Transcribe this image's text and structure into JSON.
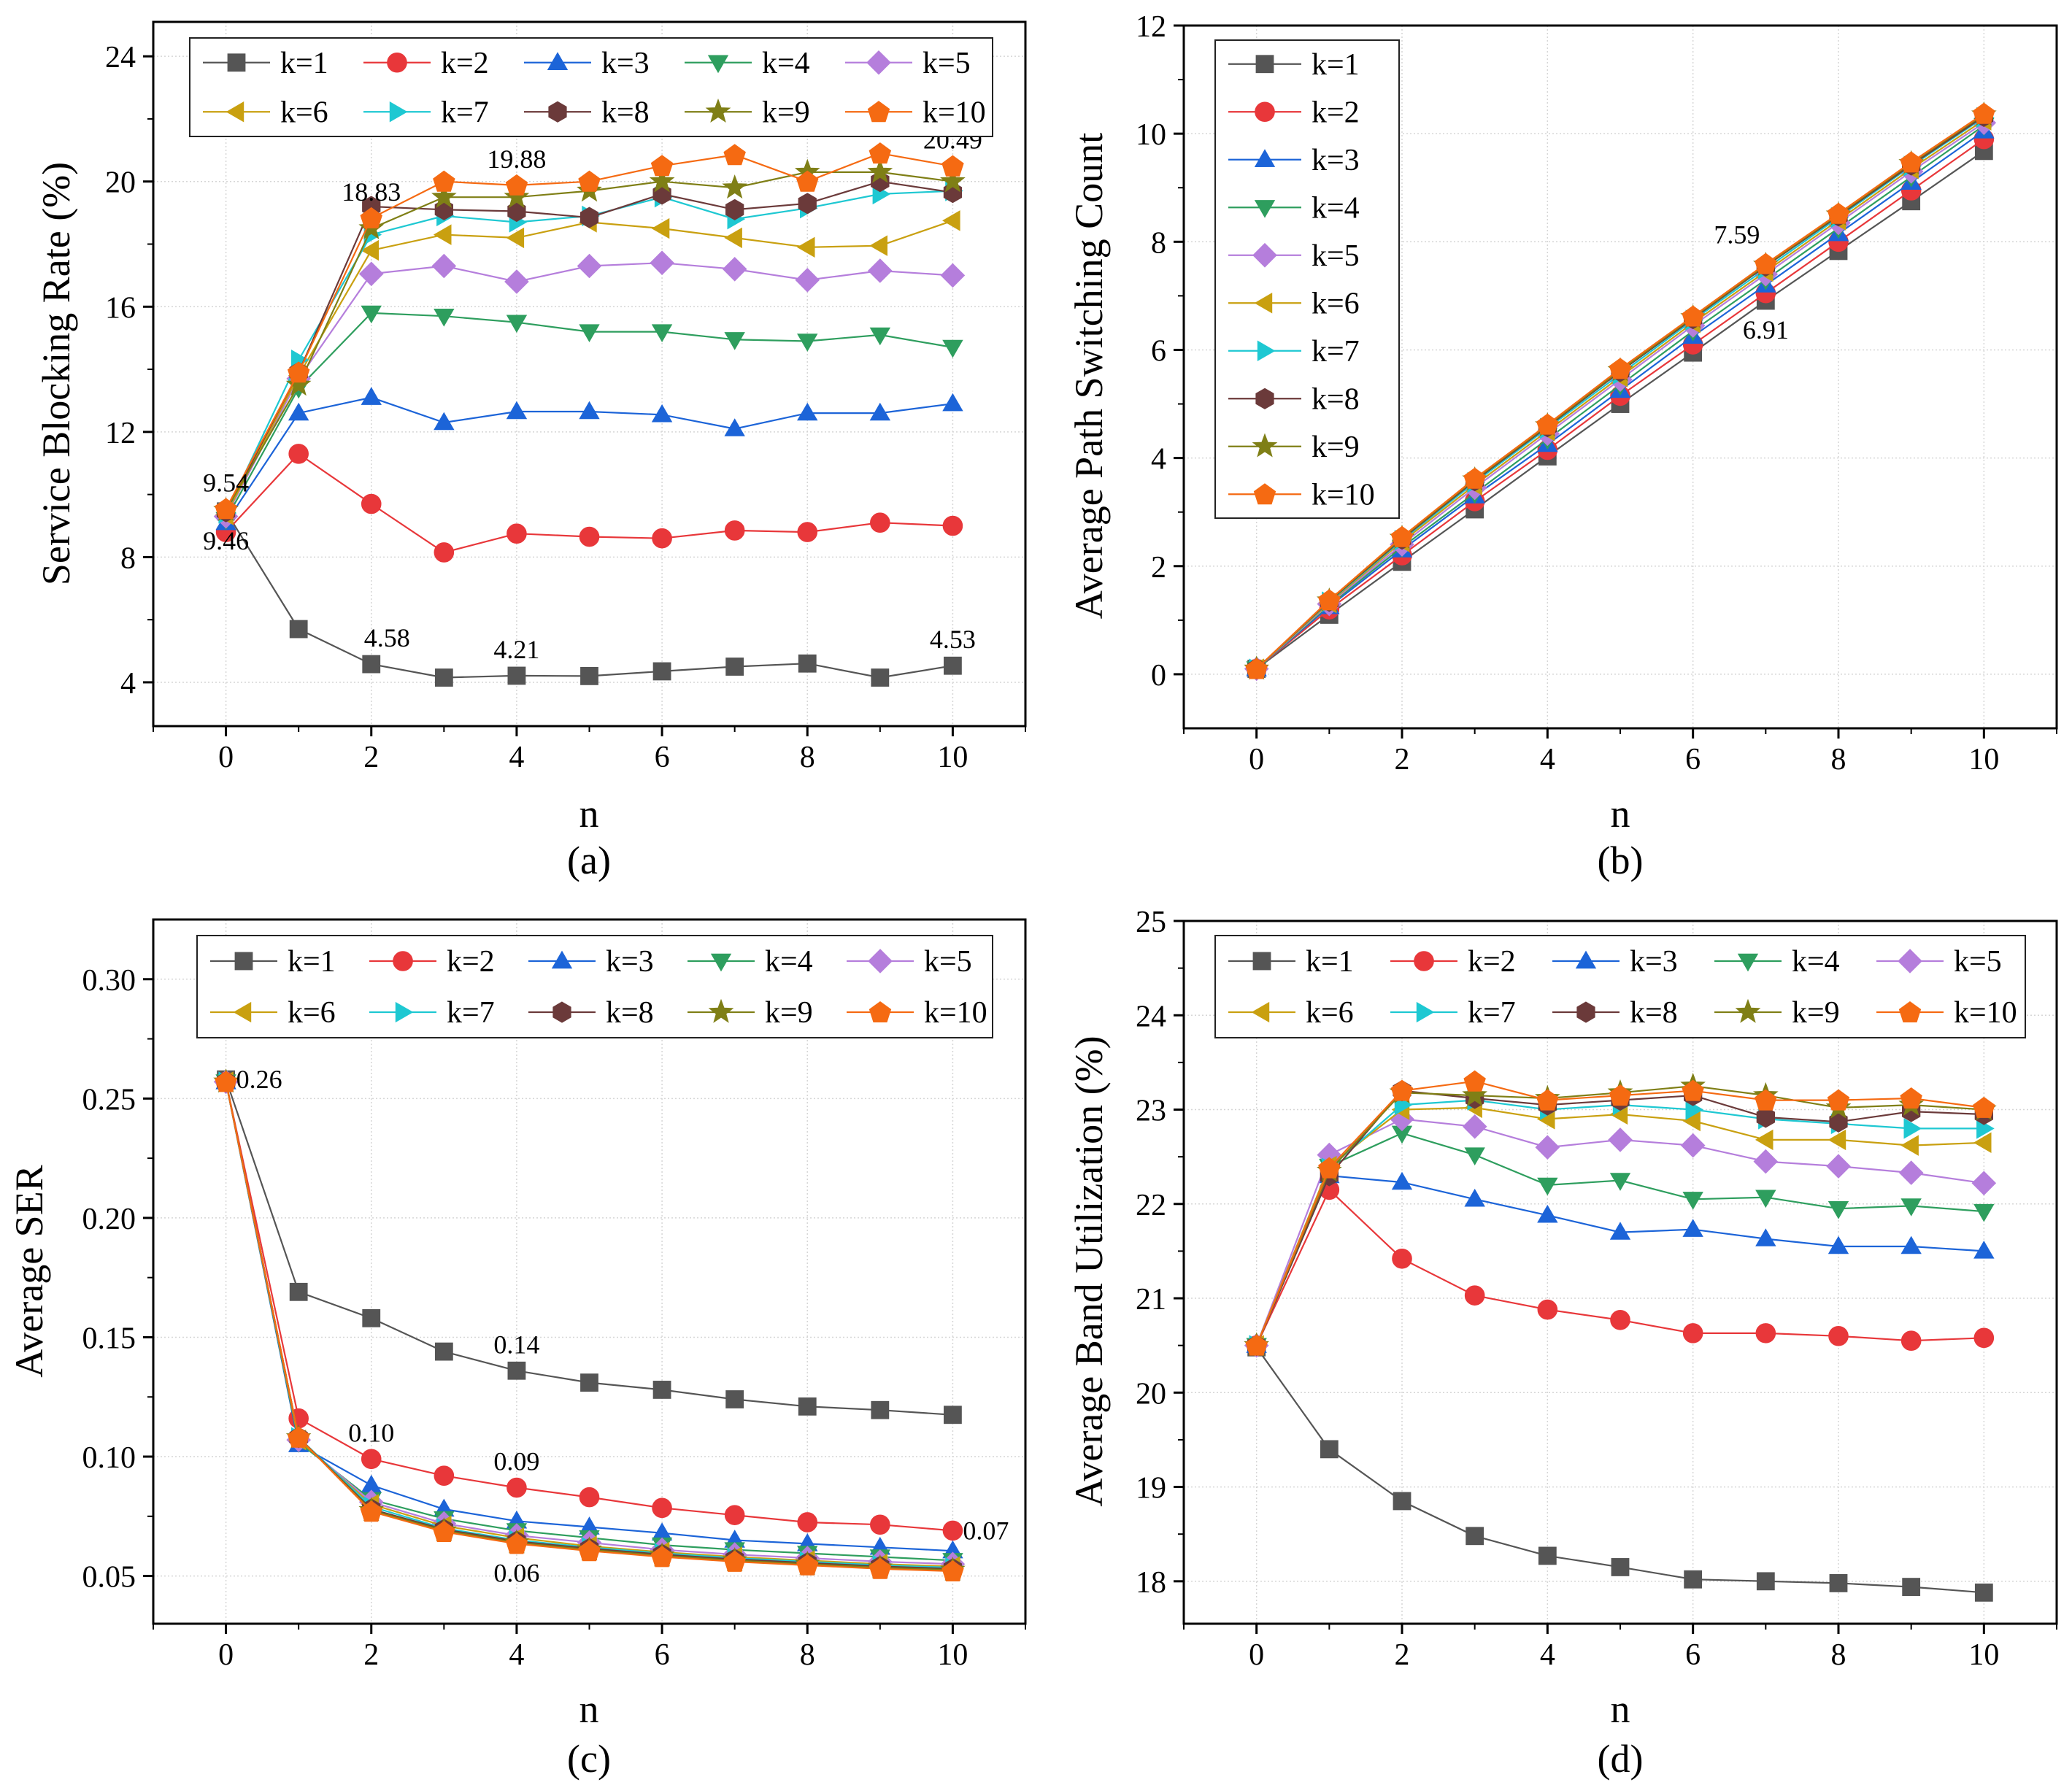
{
  "chart_data": [
    {
      "type": "line",
      "panel_label": "(a)",
      "xlabel": "n",
      "ylabel": "Service Blocking Rate (%)",
      "xlim": [
        -1,
        11
      ],
      "ylim": [
        2.6,
        25.1
      ],
      "xticks": [
        0,
        2,
        4,
        6,
        8,
        10
      ],
      "yticks": [
        4,
        8,
        12,
        16,
        20,
        24
      ],
      "x": [
        0,
        1,
        2,
        3,
        4,
        5,
        6,
        7,
        8,
        9,
        10
      ],
      "legend": {
        "position": "top",
        "columns": 5
      },
      "series": [
        {
          "name": "k=1",
          "color": "#555555",
          "marker": "square",
          "values": [
            9.46,
            5.7,
            4.58,
            4.15,
            4.21,
            4.2,
            4.35,
            4.5,
            4.6,
            4.15,
            4.53
          ]
        },
        {
          "name": "k=2",
          "color": "#e8373a",
          "marker": "circle",
          "values": [
            8.8,
            11.3,
            9.7,
            8.15,
            8.75,
            8.65,
            8.6,
            8.85,
            8.8,
            9.1,
            9.0
          ]
        },
        {
          "name": "k=3",
          "color": "#1c64d8",
          "marker": "triangle-up",
          "values": [
            9.1,
            12.6,
            13.1,
            12.3,
            12.65,
            12.65,
            12.55,
            12.1,
            12.6,
            12.6,
            12.9
          ]
        },
        {
          "name": "k=4",
          "color": "#2e9e5e",
          "marker": "triangle-down",
          "values": [
            9.2,
            13.4,
            15.8,
            15.7,
            15.5,
            15.2,
            15.2,
            14.95,
            14.9,
            15.1,
            14.7
          ]
        },
        {
          "name": "k=5",
          "color": "#b57edc",
          "marker": "diamond",
          "values": [
            9.3,
            13.7,
            17.05,
            17.3,
            16.8,
            17.3,
            17.4,
            17.2,
            16.85,
            17.15,
            17.0
          ]
        },
        {
          "name": "k=6",
          "color": "#c9a010",
          "marker": "triangle-left",
          "values": [
            9.35,
            13.8,
            17.8,
            18.3,
            18.2,
            18.7,
            18.5,
            18.2,
            17.9,
            17.95,
            18.75
          ]
        },
        {
          "name": "k=7",
          "color": "#1ec8d2",
          "marker": "triangle-right",
          "values": [
            9.4,
            14.3,
            18.3,
            18.9,
            18.7,
            18.9,
            19.5,
            18.8,
            19.15,
            19.6,
            19.7
          ]
        },
        {
          "name": "k=8",
          "color": "#6b3a3a",
          "marker": "hexagon",
          "values": [
            9.45,
            13.9,
            19.2,
            19.1,
            19.05,
            18.85,
            19.6,
            19.1,
            19.3,
            20.0,
            19.65
          ]
        },
        {
          "name": "k=9",
          "color": "#7f7f16",
          "marker": "star",
          "values": [
            9.5,
            13.5,
            18.5,
            19.5,
            19.5,
            19.7,
            20.0,
            19.8,
            20.3,
            20.3,
            20.0
          ]
        },
        {
          "name": "k=10",
          "color": "#f56a12",
          "marker": "pentagon",
          "values": [
            9.54,
            13.9,
            18.83,
            20.0,
            19.88,
            20.0,
            20.5,
            20.85,
            20.0,
            20.9,
            20.49
          ]
        }
      ],
      "annotations": [
        {
          "text": "9.54",
          "x": 0,
          "y": 9.54,
          "anchor": "above"
        },
        {
          "text": "9.46",
          "x": 0,
          "y": 9.46,
          "anchor": "below"
        },
        {
          "text": "18.83",
          "x": 2,
          "y": 18.83,
          "anchor": "above"
        },
        {
          "text": "19.88",
          "x": 4,
          "y": 19.88,
          "anchor": "above"
        },
        {
          "text": "20.49",
          "x": 10,
          "y": 20.49,
          "anchor": "above"
        },
        {
          "text": "4.58",
          "x": 2,
          "y": 4.58,
          "anchor": "above-right"
        },
        {
          "text": "4.21",
          "x": 4,
          "y": 4.21,
          "anchor": "above"
        },
        {
          "text": "4.53",
          "x": 10,
          "y": 4.53,
          "anchor": "above"
        }
      ]
    },
    {
      "type": "line",
      "panel_label": "(b)",
      "xlabel": "n",
      "ylabel": "Average Path Switching Count",
      "xlim": [
        -1,
        11
      ],
      "ylim": [
        -1,
        12
      ],
      "xticks": [
        0,
        2,
        4,
        6,
        8,
        10
      ],
      "yticks": [
        0,
        2,
        4,
        6,
        8,
        10,
        12
      ],
      "x": [
        0,
        1,
        2,
        3,
        4,
        5,
        6,
        7,
        8,
        9,
        10
      ],
      "legend": {
        "position": "top-left",
        "columns": 1
      },
      "series": [
        {
          "name": "k=1",
          "color": "#555555",
          "marker": "square",
          "values": [
            0.1,
            1.1,
            2.08,
            3.05,
            4.03,
            5.0,
            5.95,
            6.91,
            7.83,
            8.75,
            9.68
          ]
        },
        {
          "name": "k=2",
          "color": "#e8373a",
          "marker": "circle",
          "values": [
            0.1,
            1.2,
            2.2,
            3.2,
            4.15,
            5.15,
            6.1,
            7.05,
            8.0,
            8.95,
            9.9
          ]
        },
        {
          "name": "k=3",
          "color": "#1c64d8",
          "marker": "triangle-up",
          "values": [
            0.1,
            1.25,
            2.3,
            3.3,
            4.25,
            5.25,
            6.25,
            7.2,
            8.15,
            9.1,
            10.05
          ]
        },
        {
          "name": "k=4",
          "color": "#2e9e5e",
          "marker": "triangle-down",
          "values": [
            0.1,
            1.28,
            2.35,
            3.35,
            4.35,
            5.35,
            6.35,
            7.3,
            8.25,
            9.2,
            10.15
          ]
        },
        {
          "name": "k=5",
          "color": "#b57edc",
          "marker": "diamond",
          "values": [
            0.1,
            1.3,
            2.4,
            3.45,
            4.45,
            5.45,
            6.45,
            7.4,
            8.35,
            9.3,
            10.2
          ]
        },
        {
          "name": "k=6",
          "color": "#c9a010",
          "marker": "triangle-left",
          "values": [
            0.1,
            1.32,
            2.45,
            3.5,
            4.5,
            5.5,
            6.5,
            7.45,
            8.4,
            9.35,
            10.25
          ]
        },
        {
          "name": "k=7",
          "color": "#1ec8d2",
          "marker": "triangle-right",
          "values": [
            0.1,
            1.34,
            2.48,
            3.55,
            4.55,
            5.55,
            6.55,
            7.5,
            8.45,
            9.4,
            10.3
          ]
        },
        {
          "name": "k=8",
          "color": "#6b3a3a",
          "marker": "hexagon",
          "values": [
            0.1,
            1.35,
            2.5,
            3.58,
            4.58,
            5.6,
            6.58,
            7.55,
            8.48,
            9.42,
            10.32
          ]
        },
        {
          "name": "k=9",
          "color": "#7f7f16",
          "marker": "star",
          "values": [
            0.1,
            1.36,
            2.52,
            3.6,
            4.6,
            5.62,
            6.6,
            7.57,
            8.5,
            9.45,
            10.35
          ]
        },
        {
          "name": "k=10",
          "color": "#f56a12",
          "marker": "pentagon",
          "values": [
            0.1,
            1.37,
            2.54,
            3.62,
            4.62,
            5.65,
            6.62,
            7.59,
            8.52,
            9.47,
            10.37
          ]
        }
      ],
      "annotations": [
        {
          "text": "7.59",
          "x": 7,
          "y": 7.59,
          "anchor": "above-left"
        },
        {
          "text": "6.91",
          "x": 7,
          "y": 6.91,
          "anchor": "below"
        }
      ]
    },
    {
      "type": "line",
      "panel_label": "(c)",
      "xlabel": "n",
      "ylabel": "Average SER",
      "xlim": [
        -1,
        11
      ],
      "ylim": [
        0.03,
        0.325
      ],
      "xticks": [
        0,
        2,
        4,
        6,
        8,
        10
      ],
      "yticks": [
        0.05,
        0.1,
        0.15,
        0.2,
        0.25,
        0.3
      ],
      "ytick_labels": [
        "0.05",
        "0.10",
        "0.15",
        "0.20",
        "0.25",
        "0.30"
      ],
      "x": [
        0,
        1,
        2,
        3,
        4,
        5,
        6,
        7,
        8,
        9,
        10
      ],
      "legend": {
        "position": "top",
        "columns": 5
      },
      "series": [
        {
          "name": "k=1",
          "color": "#555555",
          "marker": "square",
          "values": [
            0.258,
            0.169,
            0.158,
            0.144,
            0.136,
            0.131,
            0.128,
            0.124,
            0.121,
            0.1195,
            0.1175
          ]
        },
        {
          "name": "k=2",
          "color": "#e8373a",
          "marker": "circle",
          "values": [
            0.257,
            0.116,
            0.099,
            0.092,
            0.087,
            0.083,
            0.0785,
            0.0755,
            0.0725,
            0.0715,
            0.069
          ]
        },
        {
          "name": "k=3",
          "color": "#1c64d8",
          "marker": "triangle-up",
          "values": [
            0.257,
            0.105,
            0.088,
            0.078,
            0.073,
            0.0705,
            0.068,
            0.065,
            0.0635,
            0.062,
            0.0605
          ]
        },
        {
          "name": "k=4",
          "color": "#2e9e5e",
          "marker": "triangle-down",
          "values": [
            0.257,
            0.106,
            0.082,
            0.074,
            0.069,
            0.066,
            0.063,
            0.061,
            0.0595,
            0.058,
            0.0565
          ]
        },
        {
          "name": "k=5",
          "color": "#b57edc",
          "marker": "diamond",
          "values": [
            0.257,
            0.107,
            0.081,
            0.072,
            0.067,
            0.064,
            0.061,
            0.059,
            0.0575,
            0.056,
            0.055
          ]
        },
        {
          "name": "k=6",
          "color": "#c9a010",
          "marker": "triangle-left",
          "values": [
            0.257,
            0.107,
            0.08,
            0.071,
            0.066,
            0.0625,
            0.06,
            0.058,
            0.0565,
            0.055,
            0.054
          ]
        },
        {
          "name": "k=7",
          "color": "#1ec8d2",
          "marker": "triangle-right",
          "values": [
            0.257,
            0.108,
            0.079,
            0.07,
            0.065,
            0.062,
            0.0595,
            0.0575,
            0.056,
            0.0545,
            0.0535
          ]
        },
        {
          "name": "k=8",
          "color": "#6b3a3a",
          "marker": "hexagon",
          "values": [
            0.257,
            0.108,
            0.078,
            0.0695,
            0.0645,
            0.0615,
            0.059,
            0.057,
            0.0555,
            0.054,
            0.053
          ]
        },
        {
          "name": "k=9",
          "color": "#7f7f16",
          "marker": "star",
          "values": [
            0.257,
            0.108,
            0.0775,
            0.069,
            0.064,
            0.061,
            0.0585,
            0.0565,
            0.055,
            0.0535,
            0.0525
          ]
        },
        {
          "name": "k=10",
          "color": "#f56a12",
          "marker": "pentagon",
          "values": [
            0.257,
            0.108,
            0.077,
            0.0685,
            0.0635,
            0.0605,
            0.058,
            0.056,
            0.0545,
            0.053,
            0.052
          ]
        }
      ],
      "annotations": [
        {
          "text": "0.26",
          "x": 0,
          "y": 0.258,
          "anchor": "right"
        },
        {
          "text": "0.14",
          "x": 4,
          "y": 0.136,
          "anchor": "above"
        },
        {
          "text": "0.10",
          "x": 2,
          "y": 0.099,
          "anchor": "above"
        },
        {
          "text": "0.09",
          "x": 4,
          "y": 0.087,
          "anchor": "above"
        },
        {
          "text": "0.07",
          "x": 10,
          "y": 0.069,
          "anchor": "right"
        },
        {
          "text": "0.06",
          "x": 4,
          "y": 0.0635,
          "anchor": "below"
        }
      ]
    },
    {
      "type": "line",
      "panel_label": "(d)",
      "xlabel": "n",
      "ylabel": "Average Band Utilization (%)",
      "xlim": [
        -1,
        11
      ],
      "ylim": [
        17.55,
        25.0
      ],
      "xticks": [
        0,
        2,
        4,
        6,
        8,
        10
      ],
      "yticks": [
        18,
        19,
        20,
        21,
        22,
        23,
        24,
        25
      ],
      "x": [
        0,
        1,
        2,
        3,
        4,
        5,
        6,
        7,
        8,
        9,
        10
      ],
      "legend": {
        "position": "top",
        "columns": 5
      },
      "series": [
        {
          "name": "k=1",
          "color": "#555555",
          "marker": "square",
          "values": [
            20.48,
            19.4,
            18.85,
            18.48,
            18.27,
            18.15,
            18.02,
            18.0,
            17.98,
            17.94,
            17.88
          ]
        },
        {
          "name": "k=2",
          "color": "#e8373a",
          "marker": "circle",
          "values": [
            20.5,
            22.15,
            21.42,
            21.03,
            20.88,
            20.77,
            20.63,
            20.63,
            20.6,
            20.55,
            20.58
          ]
        },
        {
          "name": "k=3",
          "color": "#1c64d8",
          "marker": "triangle-up",
          "values": [
            20.5,
            22.3,
            22.23,
            22.05,
            21.88,
            21.7,
            21.73,
            21.63,
            21.55,
            21.55,
            21.5
          ]
        },
        {
          "name": "k=4",
          "color": "#2e9e5e",
          "marker": "triangle-down",
          "values": [
            20.5,
            22.4,
            22.75,
            22.52,
            22.2,
            22.25,
            22.05,
            22.07,
            21.95,
            21.98,
            21.92
          ]
        },
        {
          "name": "k=5",
          "color": "#b57edc",
          "marker": "diamond",
          "values": [
            20.5,
            22.52,
            22.9,
            22.82,
            22.6,
            22.68,
            22.62,
            22.45,
            22.4,
            22.33,
            22.22
          ]
        },
        {
          "name": "k=6",
          "color": "#c9a010",
          "marker": "triangle-left",
          "values": [
            20.5,
            22.4,
            23.0,
            23.02,
            22.9,
            22.95,
            22.88,
            22.68,
            22.68,
            22.62,
            22.65
          ]
        },
        {
          "name": "k=7",
          "color": "#1ec8d2",
          "marker": "triangle-right",
          "values": [
            20.5,
            22.38,
            23.05,
            23.1,
            23.0,
            23.05,
            23.0,
            22.9,
            22.85,
            22.8,
            22.8
          ]
        },
        {
          "name": "k=8",
          "color": "#6b3a3a",
          "marker": "hexagon",
          "values": [
            20.5,
            22.3,
            23.2,
            23.12,
            23.05,
            23.1,
            23.15,
            22.92,
            22.87,
            22.98,
            22.95
          ]
        },
        {
          "name": "k=9",
          "color": "#7f7f16",
          "marker": "star",
          "values": [
            20.5,
            22.35,
            23.18,
            23.15,
            23.12,
            23.18,
            23.25,
            23.15,
            23.02,
            23.05,
            23.0
          ]
        },
        {
          "name": "k=10",
          "color": "#f56a12",
          "marker": "pentagon",
          "values": [
            20.5,
            22.38,
            23.2,
            23.3,
            23.1,
            23.15,
            23.2,
            23.1,
            23.1,
            23.12,
            23.02
          ]
        }
      ],
      "annotations": []
    }
  ]
}
